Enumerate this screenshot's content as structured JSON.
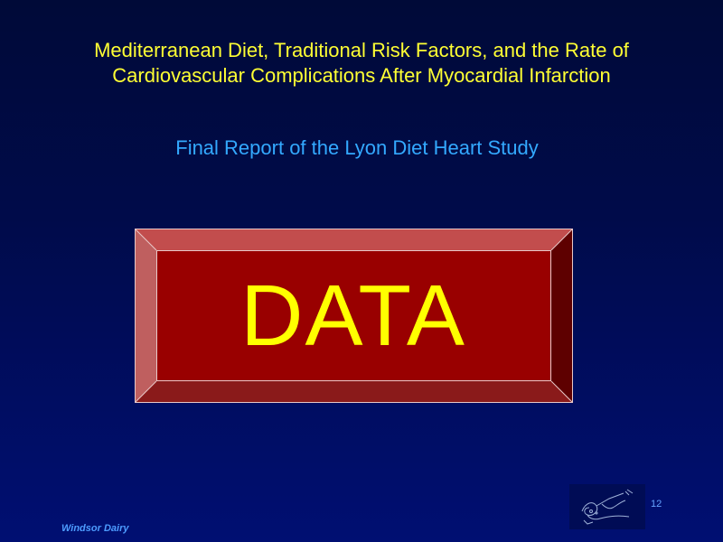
{
  "slide": {
    "title": "Mediterranean Diet, Traditional Risk Factors, and the Rate of Cardiovascular Complications After Myocardial Infarction",
    "subtitle": "Final Report of the Lyon Diet Heart Study",
    "banner_text": "DATA",
    "page_number": "12",
    "footer_text": "Windsor Dairy",
    "logo_icon": "signature-sketch-logo"
  },
  "colors": {
    "title": "#ffff33",
    "subtitle": "#33a9ff",
    "banner_face": "#990000",
    "banner_text": "#ffff00"
  }
}
